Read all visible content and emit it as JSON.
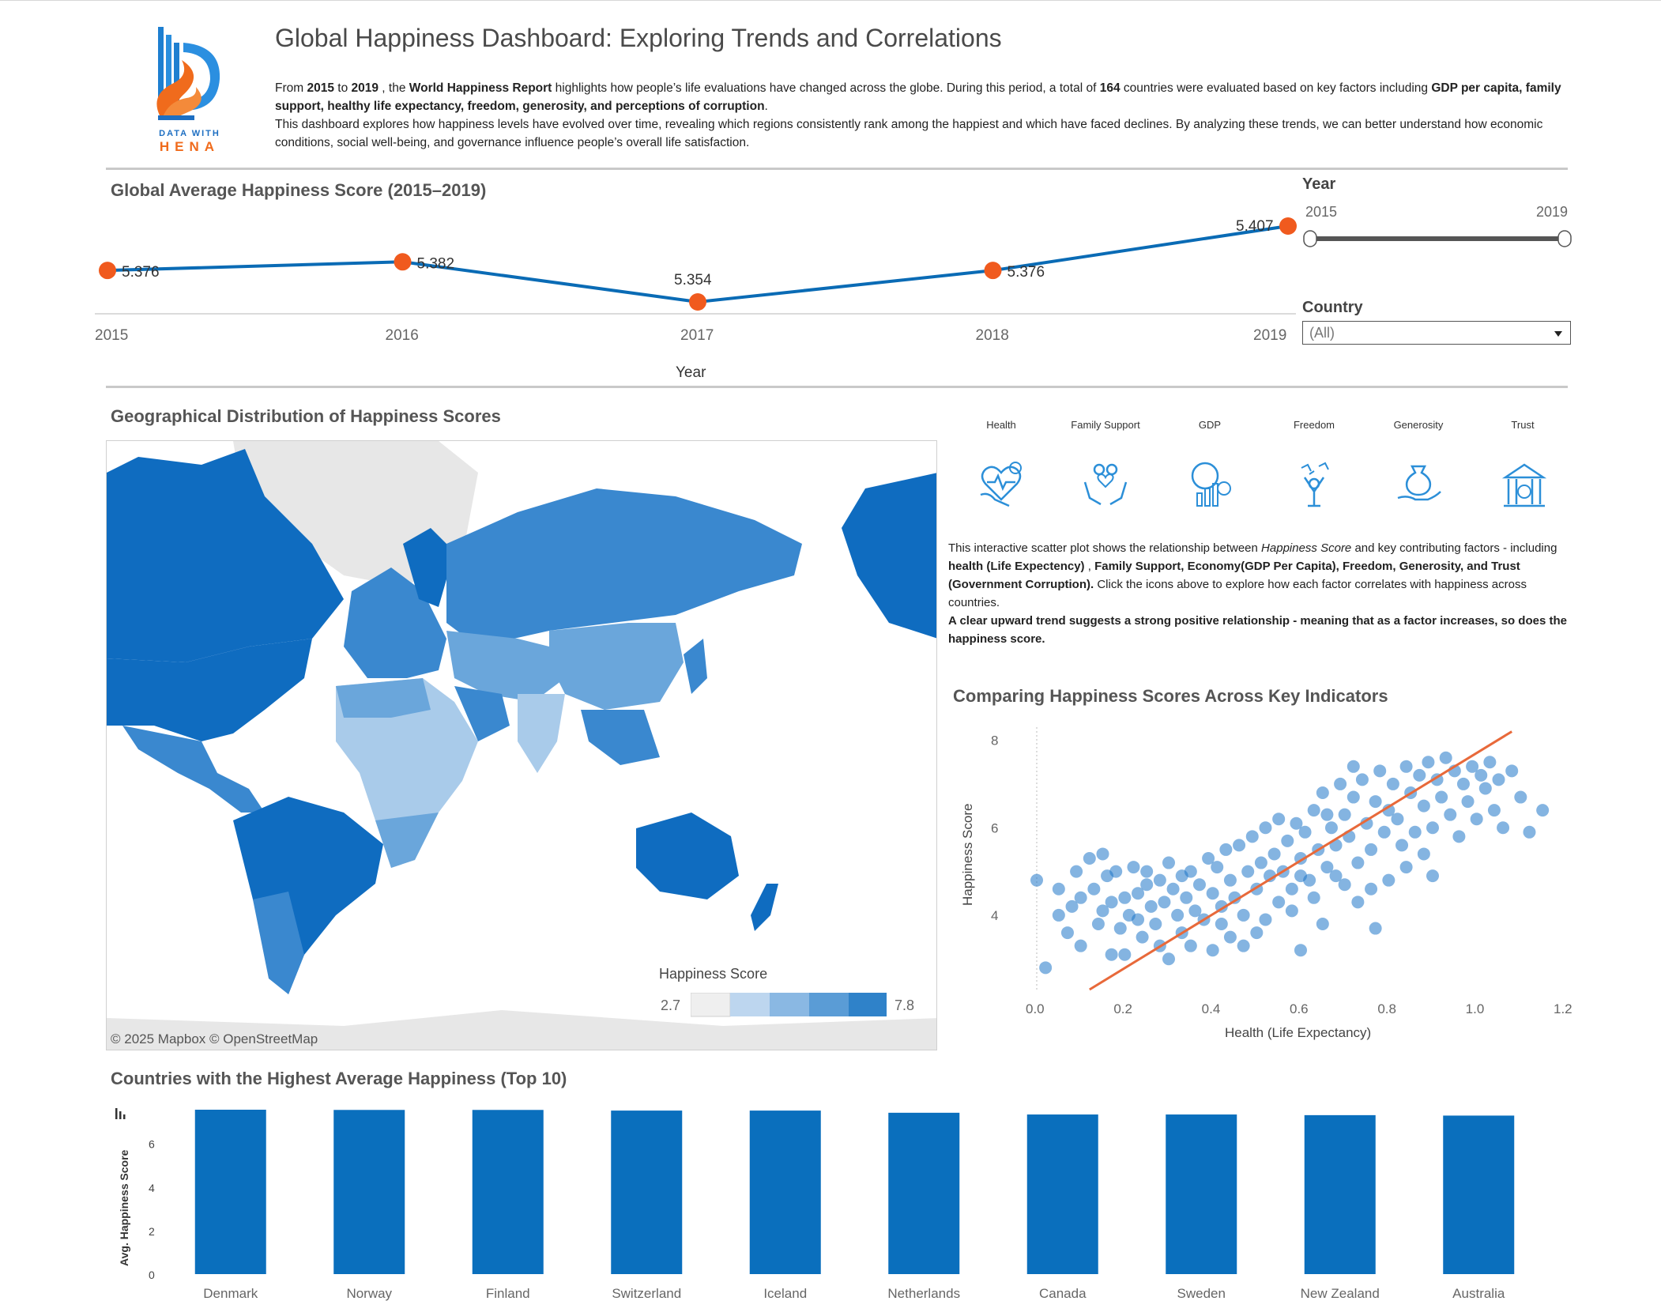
{
  "logo": {
    "line1": "DATA WITH",
    "line2": "HENA"
  },
  "header": {
    "title": "Global Happiness Dashboard: Exploring Trends and Correlations",
    "intro": {
      "t1": "From ",
      "y1": "2015",
      "t2": " to ",
      "y2": "2019",
      "t3": " , the ",
      "report": "World Happiness Report",
      "t4": " highlights how people’s life evaluations have changed across the globe. During this period, a total of ",
      "count": "164",
      "t5": " countries were evaluated based on key factors including ",
      "factors": "GDP per capita, family support, healthy life expectancy, freedom, generosity, and perceptions of corruption",
      "t6": ".",
      "line2": "This dashboard explores how happiness levels have evolved over time, revealing which regions consistently rank among the happiest and which have faced declines. By analyzing these trends, we can better understand how economic conditions, social well-being, and governance influence people’s overall life satisfaction."
    }
  },
  "filters": {
    "year_title": "Year",
    "year_min": "2015",
    "year_max": "2019",
    "country_title": "Country",
    "country_value": "(All)"
  },
  "line_title": "Global Average Happiness Score (2015–2019)",
  "map": {
    "title": "Geographical Distribution of Happiness Scores",
    "credit": "© 2025 Mapbox  © OpenStreetMap",
    "legend_title": "Happiness Score",
    "legend_min": "2.7",
    "legend_max": "7.8",
    "colors": {
      "land_none": "#e7e7e7",
      "ocean": "#ffffff",
      "high": "#0f6cc0",
      "mid_high": "#3a88cf",
      "mid": "#6aa6db",
      "low": "#a9cbea",
      "lowest": "#d8e7f5"
    }
  },
  "indicators": {
    "items": [
      {
        "label": "Health",
        "icon": "heart-health-icon"
      },
      {
        "label": "Family Support",
        "icon": "family-support-icon"
      },
      {
        "label": "GDP",
        "icon": "gdp-chart-icon"
      },
      {
        "label": "Freedom",
        "icon": "freedom-person-icon"
      },
      {
        "label": "Generosity",
        "icon": "generosity-hand-icon"
      },
      {
        "label": "Trust",
        "icon": "trust-building-icon"
      }
    ],
    "desc": {
      "a": "This interactive scatter plot shows the relationship between ",
      "b": "Happiness Score",
      "c": " and key contributing factors - including ",
      "d": "health (Life Expectency)",
      "e": " , ",
      "f": "Family Support, Economy(GDP Per Capita), Freedom, Generosity, and Trust (Government Corruption).",
      "g": " Click the icons above to explore how each factor correlates with happiness across countries.",
      "h": "A clear upward trend suggests a strong positive relationship - meaning that as a factor increases, so does the happiness score."
    }
  },
  "scatter_title": "Comparing Happiness Scores Across Key Indicators",
  "bar_title": "Countries with the Highest Average Happiness (Top 10)",
  "colors": {
    "line": "#0a6bb5",
    "marker": "#f05a1e",
    "bar": "#0a6fbd",
    "scatter": "#1f77c8",
    "trend": "#e8693a"
  },
  "chart_data": [
    {
      "type": "line",
      "x": [
        "2015",
        "2016",
        "2017",
        "2018",
        "2019"
      ],
      "series": [
        {
          "values": [
            5.376,
            5.382,
            5.354,
            5.376,
            5.407
          ]
        }
      ],
      "data_labels": [
        "5.376",
        "5.382",
        "5.354",
        "5.376",
        "5.407"
      ],
      "title": "Global Average Happiness Score (2015–2019)",
      "xlabel": "Year",
      "ylabel": "",
      "grid": false
    },
    {
      "type": "scatter",
      "title": "Comparing Happiness Scores Across Key Indicators",
      "xlabel": "Health (Life Expectancy)",
      "ylabel": "Happiness Score",
      "xlim": [
        0.0,
        1.2
      ],
      "ylim": [
        2.3,
        8.3
      ],
      "x_ticks": [
        "0.0",
        "0.2",
        "0.4",
        "0.6",
        "0.8",
        "1.0",
        "1.2"
      ],
      "y_ticks": [
        "4",
        "6",
        "8"
      ],
      "trend_line": {
        "x0": 0.12,
        "y0": 2.3,
        "x1": 1.08,
        "y1": 8.2
      },
      "points": [
        [
          0.0,
          4.8
        ],
        [
          0.02,
          2.8
        ],
        [
          0.05,
          4.0
        ],
        [
          0.05,
          4.6
        ],
        [
          0.07,
          3.6
        ],
        [
          0.08,
          4.2
        ],
        [
          0.09,
          5.0
        ],
        [
          0.1,
          3.3
        ],
        [
          0.1,
          4.4
        ],
        [
          0.12,
          5.3
        ],
        [
          0.13,
          4.6
        ],
        [
          0.14,
          3.8
        ],
        [
          0.15,
          4.1
        ],
        [
          0.16,
          4.9
        ],
        [
          0.17,
          3.1
        ],
        [
          0.17,
          4.3
        ],
        [
          0.18,
          5.0
        ],
        [
          0.19,
          3.7
        ],
        [
          0.2,
          4.4
        ],
        [
          0.2,
          3.1
        ],
        [
          0.21,
          4.0
        ],
        [
          0.22,
          5.1
        ],
        [
          0.23,
          3.9
        ],
        [
          0.23,
          4.5
        ],
        [
          0.24,
          3.5
        ],
        [
          0.25,
          4.7
        ],
        [
          0.26,
          4.2
        ],
        [
          0.27,
          3.8
        ],
        [
          0.28,
          4.8
        ],
        [
          0.29,
          4.3
        ],
        [
          0.3,
          3.0
        ],
        [
          0.3,
          5.2
        ],
        [
          0.31,
          4.6
        ],
        [
          0.32,
          4.0
        ],
        [
          0.33,
          3.6
        ],
        [
          0.33,
          4.9
        ],
        [
          0.34,
          4.4
        ],
        [
          0.35,
          5.0
        ],
        [
          0.36,
          4.1
        ],
        [
          0.37,
          4.7
        ],
        [
          0.38,
          3.9
        ],
        [
          0.39,
          5.3
        ],
        [
          0.4,
          4.5
        ],
        [
          0.41,
          5.1
        ],
        [
          0.42,
          4.2
        ],
        [
          0.42,
          3.8
        ],
        [
          0.43,
          5.5
        ],
        [
          0.44,
          4.8
        ],
        [
          0.45,
          4.4
        ],
        [
          0.46,
          5.6
        ],
        [
          0.47,
          4.0
        ],
        [
          0.48,
          5.0
        ],
        [
          0.49,
          5.8
        ],
        [
          0.5,
          4.6
        ],
        [
          0.5,
          3.6
        ],
        [
          0.51,
          5.2
        ],
        [
          0.52,
          6.0
        ],
        [
          0.53,
          4.9
        ],
        [
          0.54,
          5.4
        ],
        [
          0.55,
          4.3
        ],
        [
          0.55,
          6.2
        ],
        [
          0.56,
          5.0
        ],
        [
          0.57,
          5.7
        ],
        [
          0.58,
          4.6
        ],
        [
          0.59,
          6.1
        ],
        [
          0.6,
          5.3
        ],
        [
          0.6,
          3.2
        ],
        [
          0.61,
          5.9
        ],
        [
          0.62,
          4.8
        ],
        [
          0.63,
          6.4
        ],
        [
          0.64,
          5.5
        ],
        [
          0.65,
          6.8
        ],
        [
          0.66,
          5.1
        ],
        [
          0.67,
          6.0
        ],
        [
          0.68,
          5.6
        ],
        [
          0.69,
          7.0
        ],
        [
          0.7,
          4.7
        ],
        [
          0.7,
          6.3
        ],
        [
          0.71,
          5.8
        ],
        [
          0.72,
          6.7
        ],
        [
          0.73,
          5.2
        ],
        [
          0.74,
          7.1
        ],
        [
          0.75,
          6.1
        ],
        [
          0.76,
          5.5
        ],
        [
          0.77,
          6.6
        ],
        [
          0.78,
          7.3
        ],
        [
          0.79,
          5.9
        ],
        [
          0.8,
          6.4
        ],
        [
          0.8,
          4.8
        ],
        [
          0.81,
          7.0
        ],
        [
          0.82,
          6.2
        ],
        [
          0.83,
          5.6
        ],
        [
          0.84,
          7.4
        ],
        [
          0.85,
          6.8
        ],
        [
          0.86,
          5.9
        ],
        [
          0.87,
          7.2
        ],
        [
          0.88,
          6.5
        ],
        [
          0.89,
          7.5
        ],
        [
          0.9,
          6.0
        ],
        [
          0.91,
          7.1
        ],
        [
          0.92,
          6.7
        ],
        [
          0.93,
          7.6
        ],
        [
          0.94,
          6.3
        ],
        [
          0.95,
          7.3
        ],
        [
          0.96,
          5.8
        ],
        [
          0.97,
          7.0
        ],
        [
          0.98,
          6.6
        ],
        [
          0.99,
          7.4
        ],
        [
          1.0,
          6.2
        ],
        [
          1.01,
          7.2
        ],
        [
          1.02,
          6.9
        ],
        [
          1.03,
          7.5
        ],
        [
          1.04,
          6.4
        ],
        [
          1.05,
          7.1
        ],
        [
          1.06,
          6.0
        ],
        [
          1.08,
          7.3
        ],
        [
          1.1,
          6.7
        ],
        [
          1.12,
          5.9
        ],
        [
          1.15,
          6.4
        ],
        [
          0.35,
          3.3
        ],
        [
          0.44,
          3.5
        ],
        [
          0.52,
          3.9
        ],
        [
          0.58,
          4.1
        ],
        [
          0.63,
          4.4
        ],
        [
          0.68,
          4.9
        ],
        [
          0.73,
          4.3
        ],
        [
          0.76,
          4.6
        ],
        [
          0.84,
          5.1
        ],
        [
          0.88,
          5.4
        ],
        [
          0.9,
          4.9
        ],
        [
          0.15,
          5.4
        ],
        [
          0.25,
          5.0
        ],
        [
          0.28,
          3.3
        ],
        [
          0.4,
          3.2
        ],
        [
          0.47,
          3.3
        ],
        [
          0.65,
          3.8
        ],
        [
          0.77,
          3.7
        ],
        [
          0.6,
          4.9
        ],
        [
          0.66,
          6.3
        ],
        [
          0.72,
          7.4
        ]
      ]
    },
    {
      "type": "bar",
      "title": "Countries with the Highest Average Happiness (Top 10)",
      "categories": [
        "Denmark",
        "Norway",
        "Finland",
        "Switzerland",
        "Iceland",
        "Netherlands",
        "Canada",
        "Sweden",
        "New Zealand",
        "Australia"
      ],
      "values": [
        7.55,
        7.54,
        7.54,
        7.51,
        7.51,
        7.41,
        7.33,
        7.33,
        7.3,
        7.28
      ],
      "xlabel": "",
      "ylabel": "Avg. Happiness Score",
      "ylim": [
        0,
        7.55
      ],
      "y_ticks": [
        "0",
        "2",
        "4",
        "6"
      ]
    }
  ]
}
